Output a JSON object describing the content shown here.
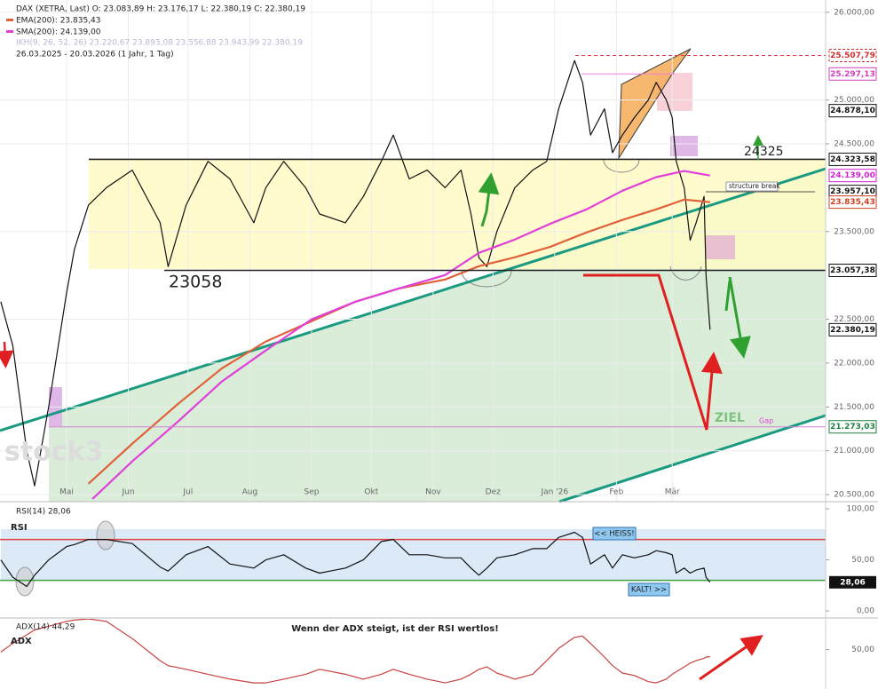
{
  "chart_data": [
    {
      "type": "line",
      "title": "DAX (XETRA, Last)  O: 23.083,89  H: 23.176,17  L: 22.380,19  C: 22.380,19",
      "indicator": "IKH(9, 26, 52, 26)  23.220,67  23.893,08  23.556,88  23.943,99  22.380,19",
      "date_range": "26.03.2025 - 20.03.2026  (1 Jahr, 1 Tag)",
      "watermark": "stock3",
      "xlim": [
        2.6,
        417
      ],
      "xticks": [
        {
          "value": 36,
          "label": "Mai"
        },
        {
          "value": 67,
          "label": "Jun"
        },
        {
          "value": 97,
          "label": "Jul"
        },
        {
          "value": 128,
          "label": "Aug"
        },
        {
          "value": 159,
          "label": "Sep"
        },
        {
          "value": 189,
          "label": "Okt"
        },
        {
          "value": 220,
          "label": "Nov"
        },
        {
          "value": 250,
          "label": "Dez"
        },
        {
          "value": 281,
          "label": "Jan '26"
        },
        {
          "value": 312,
          "label": "Feb"
        },
        {
          "value": 340,
          "label": "Mär"
        }
      ],
      "ylim": [
        20420,
        26140
      ],
      "yticks": [
        {
          "value": 26000,
          "label": "26.000,00"
        },
        {
          "value": 25000,
          "label": "25.000,00"
        },
        {
          "value": 24500,
          "label": "24.500,00"
        },
        {
          "value": 23500,
          "label": "23.500,00"
        },
        {
          "value": 22500,
          "label": "22.500,00"
        },
        {
          "value": 22000,
          "label": "22.000,00"
        },
        {
          "value": 21500,
          "label": "21.500,00"
        },
        {
          "value": 21000,
          "label": "21.000,00"
        },
        {
          "value": 20500,
          "label": "20.500,00"
        }
      ],
      "grid": true,
      "series": [
        {
          "color": "#111111",
          "x": [
            3,
            9,
            16,
            20,
            27,
            36,
            40,
            47,
            56,
            69,
            83,
            87,
            96,
            107,
            118,
            130,
            136,
            145,
            156,
            163,
            176,
            185,
            194,
            200,
            208,
            217,
            226,
            234,
            239,
            243,
            247,
            252,
            261,
            270,
            277,
            283,
            291,
            295,
            299,
            306,
            310,
            315,
            321,
            328,
            332,
            337,
            340,
            342,
            346,
            349,
            352,
            356,
            357,
            359
          ],
          "values": [
            22700,
            22200,
            21000,
            20600,
            21500,
            22800,
            23300,
            23800,
            24000,
            24200,
            23600,
            23100,
            23800,
            24300,
            24100,
            23600,
            24000,
            24300,
            24000,
            23700,
            23600,
            23900,
            24300,
            24600,
            24100,
            24200,
            24000,
            24200,
            23700,
            23200,
            23100,
            23500,
            24000,
            24200,
            24300,
            24900,
            25450,
            25200,
            24600,
            24900,
            24400,
            24600,
            24800,
            25000,
            25200,
            25000,
            24800,
            24300,
            24000,
            23400,
            23600,
            23900,
            23000,
            22380.19
          ]
        },
        {
          "name": "EMA(200): 23.835,43",
          "color": "#e0603a",
          "x": [
            47,
            69,
            92,
            114,
            136,
            159,
            181,
            203,
            226,
            243,
            261,
            279,
            297,
            315,
            332,
            346,
            359
          ],
          "values": [
            20625,
            21081,
            21536,
            21941,
            22245,
            22478,
            22700,
            22852,
            22953,
            23105,
            23206,
            23328,
            23490,
            23632,
            23753,
            23864,
            23835.43
          ]
        },
        {
          "name": "SMA(200): 24.139,00",
          "color": "#e040d8",
          "x": [
            49,
            69,
            92,
            114,
            136,
            159,
            181,
            203,
            226,
            243,
            261,
            279,
            297,
            315,
            332,
            346,
            359
          ],
          "values": [
            20450,
            20880,
            21334,
            21791,
            22144,
            22498,
            22700,
            22852,
            23004,
            23257,
            23409,
            23591,
            23753,
            23965,
            24120,
            24190,
            24139
          ]
        }
      ],
      "price_labels": [
        {
          "value": 25507.79,
          "label": "25.507,79",
          "color": "#d03030"
        },
        {
          "value": 25297.13,
          "label": "25.297,13",
          "color": "#d040c0"
        },
        {
          "value": 24878.1,
          "label": "24.878,10",
          "color": "#111111"
        },
        {
          "value": 24323.58,
          "label": "24.323,58",
          "color": "#111111"
        },
        {
          "value": 24139.0,
          "label": "24.139,00",
          "color": "#d020d0"
        },
        {
          "value": 23957.1,
          "label": "23.957,10",
          "color": "#111111"
        },
        {
          "value": 23835.43,
          "label": "23.835,43",
          "color": "#d04020"
        },
        {
          "value": 23057.38,
          "label": "23.057,38",
          "color": "#111111"
        },
        {
          "value": 22380.19,
          "label": "22.380,19",
          "color": "#111111"
        },
        {
          "value": 21273.03,
          "label": "21.273,03",
          "color": "#208040"
        }
      ],
      "annotations": [
        "23058",
        "24325",
        "structure break",
        "ZIEL",
        "Gap"
      ]
    },
    {
      "type": "line",
      "title": "RSI(14)  28,06",
      "label": "RSI",
      "xlim": [
        2.6,
        417
      ],
      "ylim": [
        -6,
        107
      ],
      "yticks": [
        {
          "value": 100,
          "label": "100,00"
        },
        {
          "value": 50,
          "label": "50,00"
        },
        {
          "value": 0,
          "label": "0,00"
        }
      ],
      "levels": [
        {
          "value": 70,
          "color": "#e04040"
        },
        {
          "value": 30,
          "color": "#40a040"
        }
      ],
      "series": [
        {
          "color": "#111111",
          "x": [
            3,
            9,
            16,
            20,
            27,
            36,
            40,
            47,
            56,
            69,
            83,
            87,
            96,
            107,
            118,
            130,
            136,
            145,
            156,
            163,
            176,
            185,
            194,
            200,
            208,
            217,
            226,
            234,
            239,
            243,
            247,
            252,
            261,
            270,
            277,
            283,
            291,
            295,
            299,
            306,
            310,
            315,
            321,
            328,
            332,
            337,
            340,
            342,
            346,
            349,
            352,
            356,
            357,
            359
          ],
          "values": [
            50,
            33,
            24,
            35,
            50,
            63,
            65,
            70,
            70,
            66,
            43,
            39,
            55,
            63,
            46,
            42,
            50,
            55,
            42,
            37,
            42,
            50,
            68,
            70,
            55,
            55,
            52,
            52,
            42,
            35,
            42,
            52,
            55,
            61,
            61,
            72,
            77,
            72,
            46,
            55,
            42,
            55,
            52,
            55,
            59,
            57,
            55,
            37,
            42,
            37,
            40,
            42,
            33,
            28.06
          ]
        }
      ],
      "last_label": {
        "value": 28.06,
        "label": "28,06"
      },
      "annotations": [
        "<< HEISS!",
        "KALT! >>"
      ]
    },
    {
      "type": "line",
      "title": "ADX(14)  44,29",
      "label": "ADX",
      "subtitle": "Wenn der ADX steigt, ist der RSI wertlos!",
      "xlim": [
        2.6,
        417
      ],
      "ylim": [
        18,
        75
      ],
      "yticks": [
        {
          "value": 50,
          "label": "50,00"
        }
      ],
      "series": [
        {
          "color": "#c84040",
          "x": [
            3,
            9,
            16,
            20,
            27,
            36,
            40,
            47,
            56,
            69,
            83,
            87,
            96,
            107,
            118,
            130,
            136,
            145,
            156,
            163,
            176,
            185,
            194,
            200,
            208,
            217,
            226,
            234,
            239,
            243,
            247,
            252,
            261,
            270,
            277,
            283,
            291,
            295,
            299,
            306,
            310,
            315,
            321,
            328,
            332,
            337,
            340,
            342,
            346,
            349,
            352,
            356,
            357,
            359
          ],
          "values": [
            48,
            55,
            62,
            66,
            69,
            73,
            74,
            75,
            73,
            59,
            41,
            37,
            34,
            30,
            26,
            23,
            23,
            26,
            30,
            34,
            30,
            26,
            30,
            34,
            30,
            26,
            23,
            26,
            30,
            34,
            36,
            31,
            26,
            30,
            41,
            51,
            60,
            61,
            55,
            44,
            37,
            31,
            29,
            24,
            23,
            26,
            30,
            32,
            36,
            39,
            41,
            43,
            44,
            44.29
          ]
        }
      ]
    }
  ]
}
